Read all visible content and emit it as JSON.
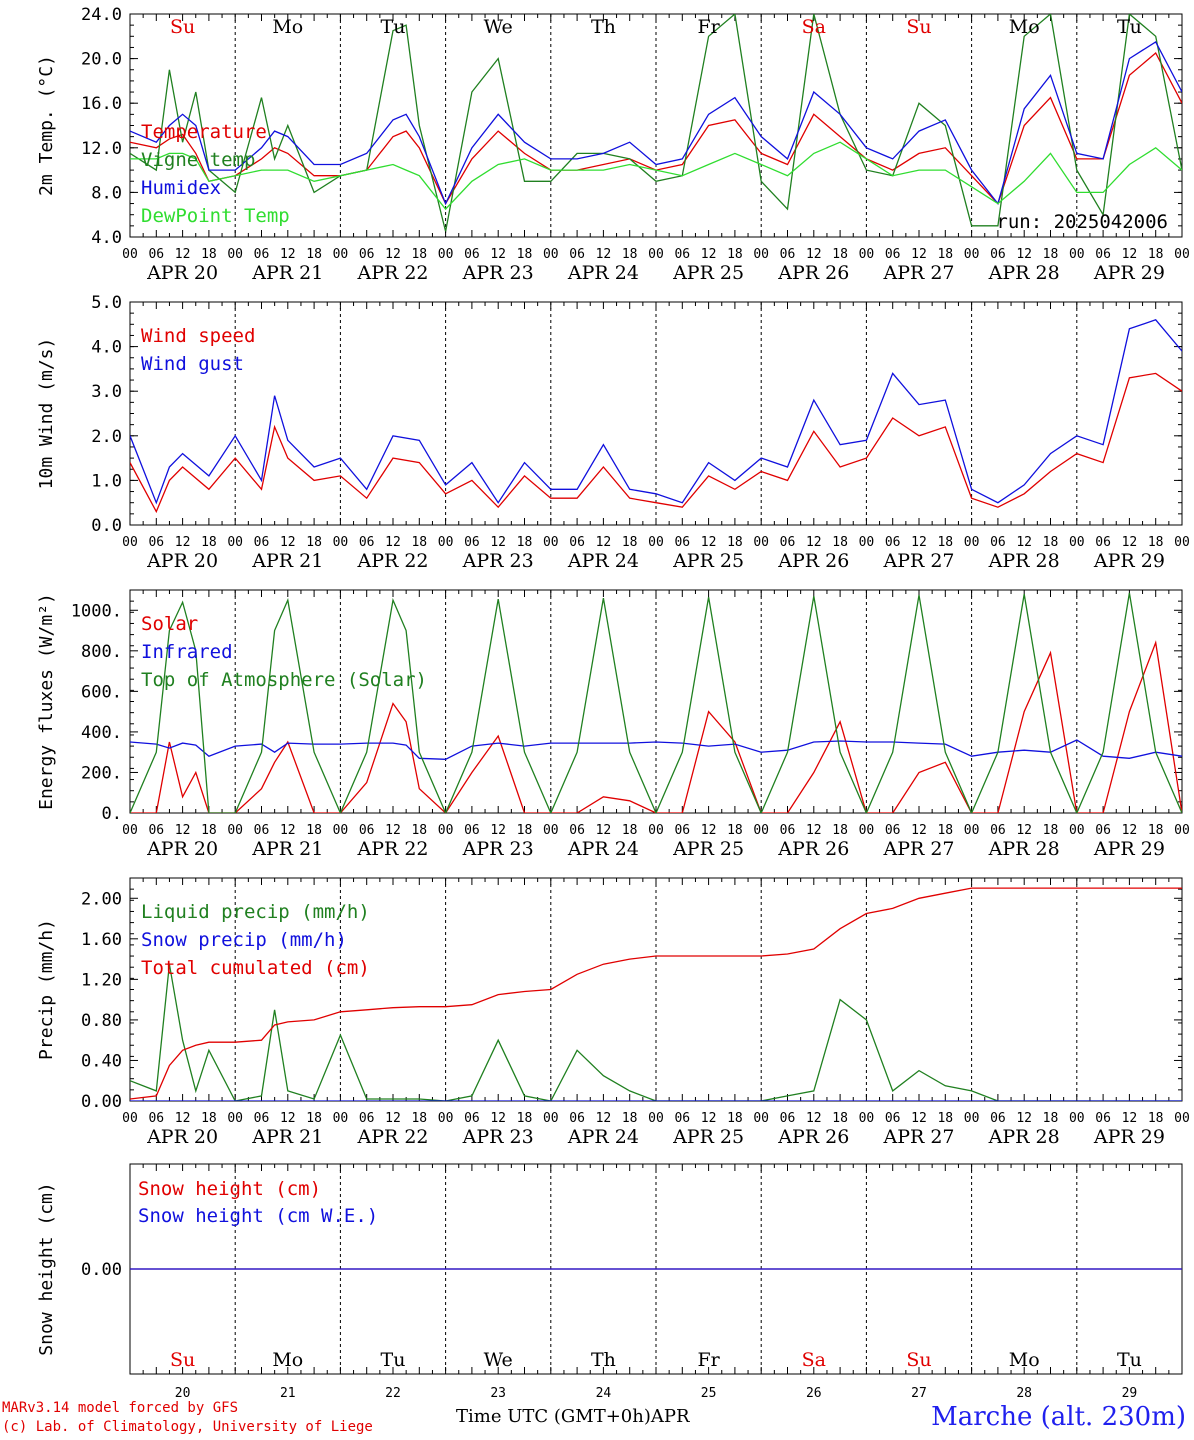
{
  "days": [
    "20",
    "21",
    "22",
    "23",
    "24",
    "25",
    "26",
    "27",
    "28",
    "29"
  ],
  "date_labels": [
    "APR 20",
    "APR 21",
    "APR 22",
    "APR 23",
    "APR 24",
    "APR 25",
    "APR 26",
    "APR 27",
    "APR 28",
    "APR 29"
  ],
  "weekdays": [
    "Su",
    "Mo",
    "Tu",
    "We",
    "Th",
    "Fr",
    "Sa",
    "Su",
    "Mo",
    "Tu"
  ],
  "weekday_colors": [
    "#e00000",
    "#000000",
    "#000000",
    "#000000",
    "#000000",
    "#000000",
    "#e00000",
    "#e00000",
    "#000000",
    "#000000"
  ],
  "hour_ticks": [
    "00",
    "06",
    "12",
    "18"
  ],
  "colors": {
    "red": "#e00000",
    "green": "#208020",
    "blue": "#1010dd",
    "lightgreen": "#30dd30"
  },
  "footer": {
    "model": "MARv3.14 model forced by GFS",
    "lab": "(c) Lab. of Climatology, University of Liege",
    "xlabel": "Time UTC (GMT+0h)",
    "month": "APR",
    "station": "Marche (alt. 230m)"
  },
  "chart_data": [
    {
      "type": "line",
      "ylabel": "2m Temp. (°C)",
      "ylim": [
        4.0,
        24.0
      ],
      "yticks": [
        "4.0",
        "8.0",
        "12.0",
        "16.0",
        "20.0",
        "24.0"
      ],
      "annotation": "run: 2025042006",
      "x_hours": [
        0,
        6,
        9,
        12,
        15,
        18,
        24,
        30,
        33,
        36,
        42,
        48,
        54,
        60,
        63,
        66,
        72,
        78,
        84,
        90,
        96,
        102,
        108,
        114,
        120,
        126,
        132,
        138,
        144,
        150,
        156,
        162,
        168,
        174,
        180,
        186,
        192,
        198,
        204,
        210,
        216,
        222,
        228,
        234,
        240
      ],
      "series": [
        {
          "name": "Temperature",
          "color": "#e00000",
          "values": [
            12.5,
            12.0,
            12.8,
            13.2,
            11.5,
            9.0,
            9.5,
            11.0,
            12.0,
            11.5,
            9.5,
            9.5,
            10.0,
            13.0,
            13.5,
            12.0,
            7.0,
            11.0,
            13.5,
            11.5,
            10.0,
            10.0,
            10.5,
            11.0,
            10.0,
            10.5,
            14.0,
            14.5,
            11.5,
            10.5,
            15.0,
            13.0,
            11.0,
            10.0,
            11.5,
            12.0,
            9.5,
            7.0,
            14.0,
            16.5,
            11.0,
            11.0,
            18.5,
            20.5,
            16.0
          ]
        },
        {
          "name": "Vigne temp",
          "color": "#208020",
          "values": [
            11.5,
            10.0,
            19.0,
            12.5,
            17.0,
            10.0,
            8.0,
            16.5,
            11.0,
            14.0,
            8.0,
            9.5,
            10.0,
            22.5,
            23.0,
            14.0,
            4.5,
            17.0,
            20.0,
            9.0,
            9.0,
            11.5,
            11.5,
            11.0,
            9.0,
            9.5,
            22.0,
            24.0,
            9.0,
            6.5,
            24.0,
            15.0,
            10.0,
            9.5,
            16.0,
            14.0,
            5.0,
            5.0,
            22.0,
            24.0,
            10.0,
            6.0,
            24.0,
            22.0,
            10.0
          ]
        },
        {
          "name": "Humidex",
          "color": "#1010dd",
          "values": [
            13.5,
            12.5,
            14.0,
            15.0,
            14.0,
            10.0,
            10.0,
            12.0,
            13.5,
            13.0,
            10.5,
            10.5,
            11.5,
            14.5,
            15.0,
            13.0,
            7.0,
            12.0,
            15.0,
            12.5,
            11.0,
            11.0,
            11.5,
            12.5,
            10.5,
            11.0,
            15.0,
            16.5,
            13.0,
            11.0,
            17.0,
            15.0,
            12.0,
            11.0,
            13.5,
            14.5,
            10.0,
            7.0,
            15.5,
            18.5,
            11.5,
            11.0,
            20.0,
            21.5,
            17.0
          ]
        },
        {
          "name": "DewPoint Temp",
          "color": "#30dd30",
          "values": [
            11.0,
            11.0,
            11.5,
            11.5,
            11.0,
            9.0,
            9.5,
            10.0,
            10.0,
            10.0,
            9.0,
            9.5,
            10.0,
            10.5,
            10.0,
            9.5,
            6.5,
            9.0,
            10.5,
            11.0,
            10.0,
            10.0,
            10.0,
            10.5,
            10.0,
            9.5,
            10.5,
            11.5,
            10.5,
            9.5,
            11.5,
            12.5,
            11.0,
            9.5,
            10.0,
            10.0,
            8.5,
            7.0,
            9.0,
            11.5,
            8.0,
            8.0,
            10.5,
            12.0,
            10.0
          ]
        }
      ]
    },
    {
      "type": "line",
      "ylabel": "10m Wind (m/s)",
      "ylim": [
        0.0,
        5.0
      ],
      "yticks": [
        "0.0",
        "1.0",
        "2.0",
        "3.0",
        "4.0",
        "5.0"
      ],
      "x_hours": [
        0,
        6,
        9,
        12,
        18,
        24,
        30,
        33,
        36,
        42,
        48,
        54,
        60,
        66,
        72,
        78,
        84,
        90,
        96,
        102,
        108,
        114,
        120,
        126,
        132,
        138,
        144,
        150,
        156,
        162,
        168,
        174,
        180,
        186,
        192,
        198,
        204,
        210,
        216,
        222,
        228,
        234,
        240
      ],
      "series": [
        {
          "name": "Wind speed",
          "color": "#e00000",
          "values": [
            1.4,
            0.3,
            1.0,
            1.3,
            0.8,
            1.5,
            0.8,
            2.2,
            1.5,
            1.0,
            1.1,
            0.6,
            1.5,
            1.4,
            0.7,
            1.0,
            0.4,
            1.1,
            0.6,
            0.6,
            1.3,
            0.6,
            0.5,
            0.4,
            1.1,
            0.8,
            1.2,
            1.0,
            2.1,
            1.3,
            1.5,
            2.4,
            2.0,
            2.2,
            0.6,
            0.4,
            0.7,
            1.2,
            1.6,
            1.4,
            3.3,
            3.4,
            3.0
          ]
        },
        {
          "name": "Wind gust",
          "color": "#1010dd",
          "values": [
            2.0,
            0.5,
            1.3,
            1.6,
            1.1,
            2.0,
            1.0,
            2.9,
            1.9,
            1.3,
            1.5,
            0.8,
            2.0,
            1.9,
            0.9,
            1.4,
            0.5,
            1.4,
            0.8,
            0.8,
            1.8,
            0.8,
            0.7,
            0.5,
            1.4,
            1.0,
            1.5,
            1.3,
            2.8,
            1.8,
            1.9,
            3.4,
            2.7,
            2.8,
            0.8,
            0.5,
            0.9,
            1.6,
            2.0,
            1.8,
            4.4,
            4.6,
            3.9
          ]
        }
      ]
    },
    {
      "type": "line",
      "ylabel": "Energy fluxes (W/m²)",
      "ylim": [
        0,
        1100
      ],
      "yticks": [
        "0.",
        "200.",
        "400.",
        "600.",
        "800.",
        "1000."
      ],
      "x_hours": [
        0,
        6,
        9,
        12,
        15,
        18,
        24,
        30,
        33,
        36,
        42,
        48,
        54,
        60,
        63,
        66,
        72,
        78,
        84,
        90,
        96,
        102,
        108,
        114,
        120,
        126,
        132,
        138,
        144,
        150,
        156,
        162,
        168,
        174,
        180,
        186,
        192,
        198,
        204,
        210,
        216,
        222,
        228,
        234,
        240
      ],
      "series": [
        {
          "name": "Solar",
          "color": "#e00000",
          "values": [
            0,
            0,
            350,
            80,
            200,
            0,
            0,
            120,
            250,
            350,
            0,
            0,
            150,
            540,
            450,
            120,
            0,
            200,
            380,
            0,
            0,
            0,
            80,
            60,
            0,
            0,
            500,
            350,
            0,
            0,
            200,
            450,
            0,
            0,
            200,
            250,
            0,
            0,
            500,
            790,
            0,
            0,
            500,
            840,
            0
          ]
        },
        {
          "name": "Infrared",
          "color": "#1010dd",
          "values": [
            350,
            340,
            320,
            345,
            335,
            280,
            330,
            340,
            300,
            345,
            340,
            340,
            345,
            345,
            335,
            270,
            265,
            330,
            345,
            330,
            345,
            345,
            345,
            345,
            350,
            345,
            330,
            340,
            300,
            310,
            350,
            355,
            350,
            350,
            345,
            340,
            280,
            300,
            310,
            300,
            360,
            280,
            270,
            300,
            280
          ]
        },
        {
          "name": "Top of Atmosphere (Solar)",
          "color": "#208020",
          "values": [
            0,
            300,
            900,
            1040,
            800,
            0,
            0,
            300,
            900,
            1050,
            300,
            0,
            300,
            1050,
            900,
            300,
            0,
            300,
            1055,
            300,
            0,
            300,
            1060,
            300,
            0,
            300,
            1065,
            300,
            0,
            300,
            1070,
            300,
            0,
            300,
            1075,
            300,
            0,
            300,
            1080,
            300,
            0,
            300,
            1085,
            300,
            0
          ]
        }
      ]
    },
    {
      "type": "line",
      "ylabel": "Precip (mm/h)",
      "ylim": [
        0.0,
        2.2
      ],
      "yticks": [
        "0.00",
        "0.40",
        "0.80",
        "1.20",
        "1.60",
        "2.00"
      ],
      "x_hours": [
        0,
        6,
        9,
        12,
        15,
        18,
        24,
        30,
        33,
        36,
        42,
        48,
        54,
        60,
        66,
        72,
        78,
        84,
        90,
        96,
        102,
        108,
        114,
        120,
        126,
        132,
        138,
        144,
        150,
        156,
        162,
        168,
        174,
        180,
        186,
        192,
        198,
        204,
        210,
        216,
        222,
        228,
        234,
        240
      ],
      "series": [
        {
          "name": "Liquid precip (mm/h)",
          "color": "#208020",
          "values": [
            0.2,
            0.1,
            1.35,
            0.6,
            0.1,
            0.5,
            0.0,
            0.05,
            0.9,
            0.1,
            0.02,
            0.65,
            0.02,
            0.02,
            0.02,
            0.0,
            0.05,
            0.6,
            0.05,
            0.0,
            0.5,
            0.25,
            0.1,
            0.0,
            0.0,
            0.0,
            0.0,
            0.0,
            0.05,
            0.1,
            1.0,
            0.8,
            0.1,
            0.3,
            0.15,
            0.1,
            0.0,
            0.0,
            0.0,
            0.0,
            0.0,
            0.0,
            0.0,
            0.0
          ]
        },
        {
          "name": "Snow precip (mm/h)",
          "color": "#1010dd",
          "values": [
            0.0,
            0.0,
            0.0,
            0.0,
            0.0,
            0.0,
            0.0,
            0.0,
            0.0,
            0.0,
            0.0,
            0.0,
            0.0,
            0.0,
            0.0,
            0.0,
            0.0,
            0.0,
            0.0,
            0.0,
            0.0,
            0.0,
            0.0,
            0.0,
            0.0,
            0.0,
            0.0,
            0.0,
            0.0,
            0.0,
            0.0,
            0.0,
            0.0,
            0.0,
            0.0,
            0.0,
            0.0,
            0.0,
            0.0,
            0.0,
            0.0,
            0.0,
            0.0,
            0.0
          ]
        },
        {
          "name": "Total cumulated (cm)",
          "color": "#e00000",
          "values": [
            0.02,
            0.05,
            0.35,
            0.5,
            0.55,
            0.58,
            0.58,
            0.6,
            0.75,
            0.78,
            0.8,
            0.88,
            0.9,
            0.92,
            0.93,
            0.93,
            0.95,
            1.05,
            1.08,
            1.1,
            1.25,
            1.35,
            1.4,
            1.43,
            1.43,
            1.43,
            1.43,
            1.43,
            1.45,
            1.5,
            1.7,
            1.85,
            1.9,
            2.0,
            2.05,
            2.1,
            2.1,
            2.1,
            2.1,
            2.1,
            2.1,
            2.1,
            2.1,
            2.1
          ]
        }
      ]
    },
    {
      "type": "line",
      "ylabel": "Snow height (cm)",
      "ylim": [
        -1.0,
        1.0
      ],
      "yticks": [
        "0.00"
      ],
      "x_hours": [
        0,
        240
      ],
      "series": [
        {
          "name": "Snow height (cm)",
          "color": "#e00000",
          "values": [
            0.0,
            0.0
          ]
        },
        {
          "name": "Snow height (cm W.E.)",
          "color": "#1010dd",
          "values": [
            0.0,
            0.0
          ]
        }
      ]
    }
  ]
}
